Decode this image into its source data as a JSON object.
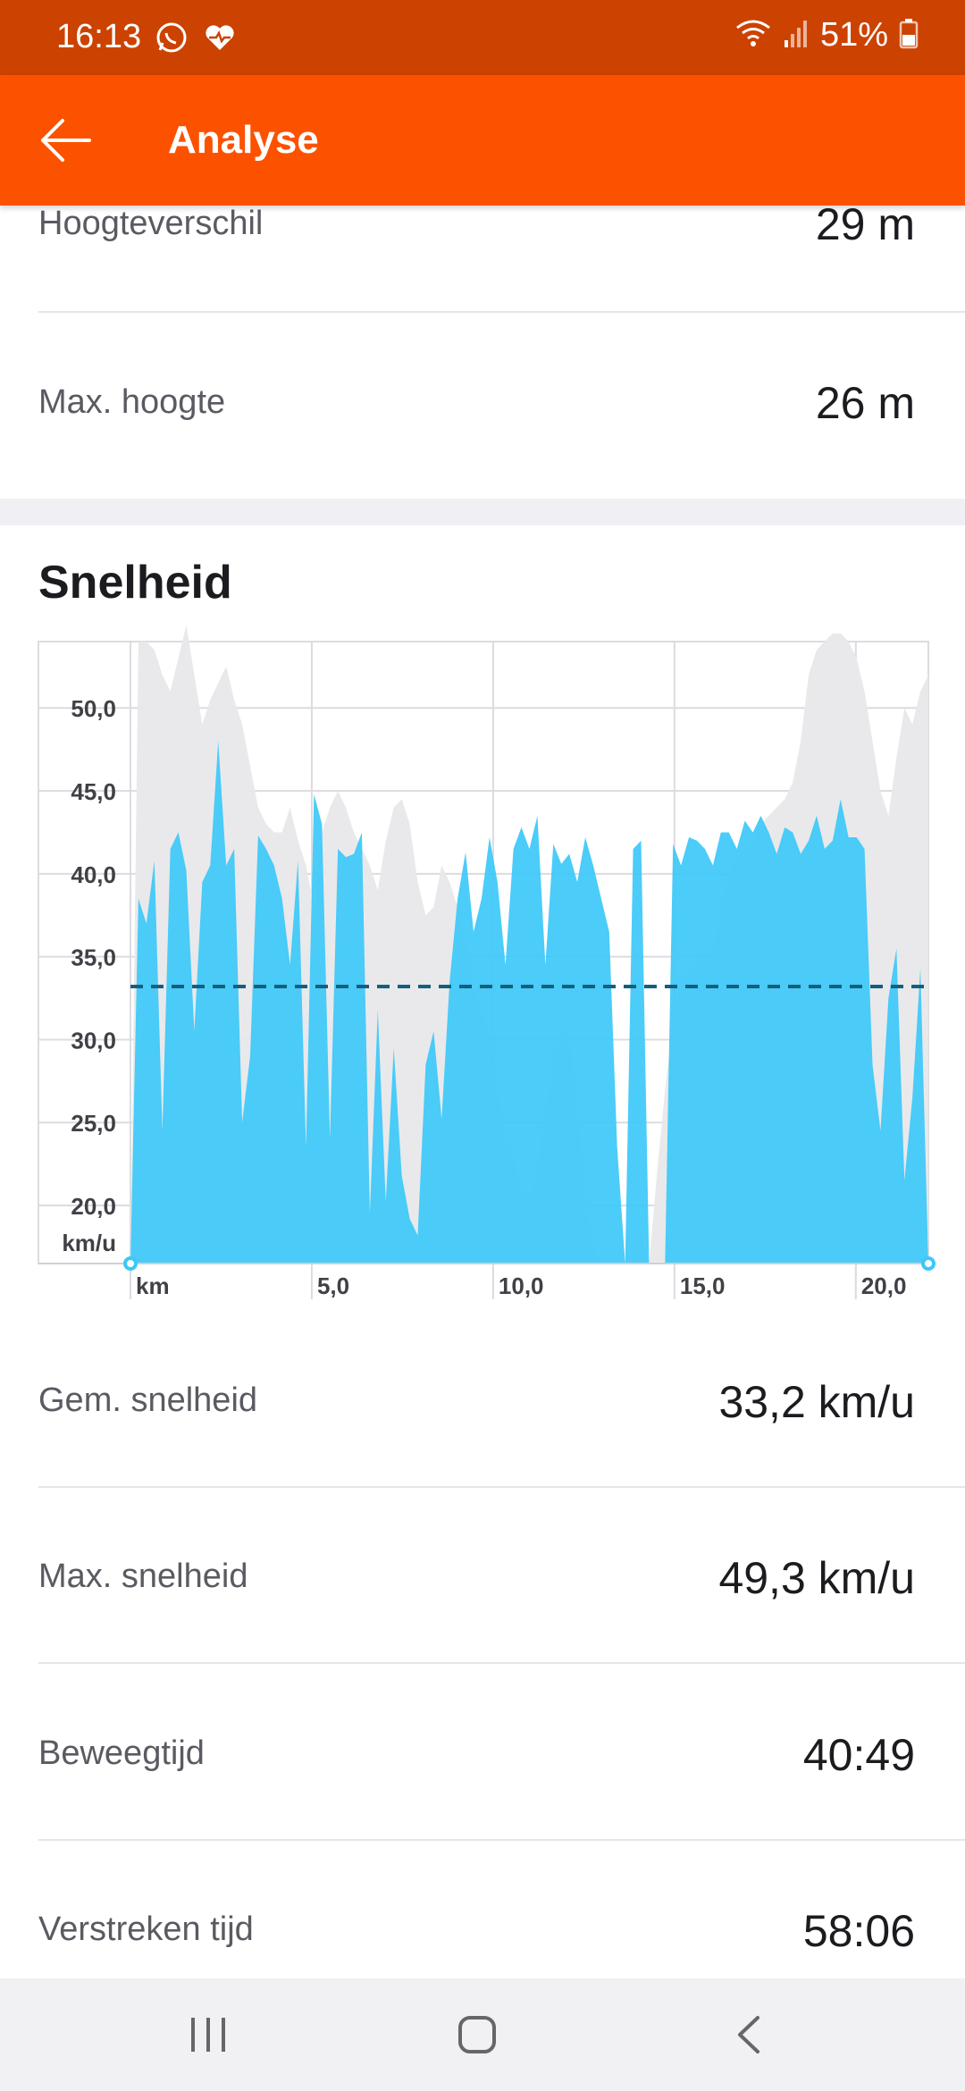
{
  "status_bar": {
    "time": "16:13",
    "battery": "51%",
    "icons": [
      "whatsapp-icon",
      "heart-monitor-icon",
      "wifi-icon",
      "signal-icon",
      "battery-icon"
    ]
  },
  "app_bar": {
    "title": "Analyse",
    "back_icon": "arrow-left-icon",
    "background": "#fc5200"
  },
  "elevation_stats": [
    {
      "label": "Hoogteverschil",
      "value": "29 m"
    },
    {
      "label": "Max. hoogte",
      "value": "26 m"
    }
  ],
  "speed_section": {
    "title": "Snelheid"
  },
  "chart_data": {
    "type": "area",
    "title": "Snelheid",
    "xlabel": "km",
    "ylabel": "km/u",
    "x_ticks": [
      "km",
      "5,0",
      "10,0",
      "15,0",
      "20,0"
    ],
    "y_ticks": [
      "50,0",
      "45,0",
      "40,0",
      "35,0",
      "30,0",
      "25,0",
      "20,0"
    ],
    "xlim": [
      0,
      22
    ],
    "ylim": [
      16.5,
      54
    ],
    "grid": true,
    "average_line": 33.2,
    "colors": {
      "speed": "#3cc8f8",
      "elevation": "#e8e8ea",
      "average": "#12607e"
    },
    "series": [
      {
        "id": "speed",
        "x": [
          0,
          0.22,
          0.44,
          0.66,
          0.88,
          1.1,
          1.32,
          1.54,
          1.76,
          1.98,
          2.2,
          2.42,
          2.64,
          2.86,
          3.08,
          3.3,
          3.52,
          3.74,
          3.96,
          4.18,
          4.4,
          4.62,
          4.84,
          5.06,
          5.28,
          5.5,
          5.72,
          5.94,
          6.16,
          6.38,
          6.6,
          6.82,
          7.04,
          7.26,
          7.48,
          7.7,
          7.92,
          8.14,
          8.36,
          8.58,
          8.8,
          9.02,
          9.24,
          9.46,
          9.68,
          9.9,
          10.12,
          10.34,
          10.56,
          10.78,
          11.0,
          11.22,
          11.44,
          11.66,
          11.88,
          12.1,
          12.32,
          12.54,
          12.76,
          12.98,
          13.2,
          13.42,
          13.64,
          13.86,
          14.08,
          14.3,
          14.52,
          14.74,
          14.96,
          15.18,
          15.4,
          15.62,
          15.84,
          16.06,
          16.28,
          16.5,
          16.72,
          16.94,
          17.16,
          17.38,
          17.6,
          17.82,
          18.04,
          18.26,
          18.48,
          18.7,
          18.92,
          19.14,
          19.36,
          19.58,
          19.8,
          20.02,
          20.24,
          20.46,
          20.68,
          20.9,
          21.12,
          21.34,
          21.56,
          21.78,
          22.0
        ],
        "values": [
          16.5,
          38.5,
          37,
          40.8,
          24.5,
          41.5,
          42.5,
          40.2,
          30.5,
          39.5,
          40.5,
          48,
          40.5,
          41.5,
          25,
          29,
          42.3,
          41.5,
          40.5,
          38.5,
          34.5,
          40.8,
          23.5,
          44.8,
          43,
          24,
          41.5,
          41,
          41.2,
          42.5,
          19.5,
          31.8,
          20.2,
          29.5,
          21.8,
          19.2,
          18.2,
          28.5,
          30.5,
          25.2,
          33.5,
          38.5,
          41.3,
          36.5,
          38.5,
          42.2,
          39.5,
          34.5,
          41.5,
          42.8,
          41.5,
          43.5,
          34.5,
          41.8,
          40.6,
          41.2,
          39.5,
          42.2,
          40.5,
          38.5,
          36.5,
          23.5,
          16.5,
          41.5,
          42,
          16.5,
          16.5,
          16.5,
          41.8,
          40.5,
          42.2,
          42,
          41.5,
          40.5,
          42.5,
          42.5,
          41.5,
          43.2,
          42.5,
          43.5,
          42.5,
          41.2,
          42.8,
          42.5,
          41.2,
          42,
          43.5,
          41.5,
          42,
          44.5,
          42.2,
          42.2,
          41.5,
          28.5,
          24.5,
          32.5,
          35.5,
          21.5,
          26.5,
          34.3,
          16.5
        ]
      },
      {
        "id": "elevation",
        "x": [
          0,
          0.22,
          0.44,
          0.66,
          0.88,
          1.1,
          1.32,
          1.54,
          1.76,
          1.98,
          2.2,
          2.42,
          2.64,
          2.86,
          3.08,
          3.3,
          3.52,
          3.74,
          3.96,
          4.18,
          4.4,
          4.62,
          4.84,
          5.06,
          5.28,
          5.5,
          5.72,
          5.94,
          6.16,
          6.38,
          6.6,
          6.82,
          7.04,
          7.26,
          7.48,
          7.7,
          7.92,
          8.14,
          8.36,
          8.58,
          8.8,
          9.02,
          9.24,
          9.46,
          9.68,
          9.9,
          10.12,
          10.34,
          10.56,
          10.78,
          11.0,
          11.22,
          11.44,
          11.66,
          11.88,
          12.1,
          12.32,
          12.54,
          12.76,
          12.98,
          13.2,
          13.42,
          13.64,
          13.86,
          14.08,
          14.3,
          14.52,
          14.74,
          14.96,
          15.18,
          15.4,
          15.62,
          15.84,
          16.06,
          16.28,
          16.5,
          16.72,
          16.94,
          17.16,
          17.38,
          17.6,
          17.82,
          18.04,
          18.26,
          18.48,
          18.7,
          18.92,
          19.14,
          19.36,
          19.58,
          19.8,
          20.02,
          20.24,
          20.46,
          20.68,
          20.9,
          21.12,
          21.34,
          21.56,
          21.78,
          22.0
        ],
        "values": [
          16.5,
          54,
          54,
          53.5,
          52,
          51,
          53,
          55,
          52,
          49,
          50.5,
          51.5,
          52.5,
          50.5,
          49,
          46.5,
          44,
          43,
          42.5,
          42.5,
          44,
          42,
          40.5,
          38,
          42.5,
          44,
          45,
          44,
          42.5,
          41.5,
          40.5,
          39,
          42,
          44,
          44.5,
          43,
          39.5,
          37.5,
          38,
          40.5,
          39.5,
          38,
          36,
          33,
          32,
          30,
          27,
          24,
          23,
          21,
          20.5,
          22,
          25.5,
          29,
          30.5,
          30,
          26,
          20,
          17.5,
          16.5,
          16.5,
          16.5,
          16.5,
          17.5,
          18.5,
          16.5,
          22,
          27,
          31,
          33.5,
          34,
          35,
          34.5,
          35,
          38,
          40,
          41,
          41.5,
          42,
          43,
          43.5,
          44,
          44.5,
          45.5,
          48,
          52,
          53.5,
          54,
          54.5,
          54.5,
          54,
          53,
          51,
          48,
          45,
          43.5,
          47,
          50,
          49,
          51,
          52
        ]
      }
    ]
  },
  "speed_stats": [
    {
      "label": "Gem. snelheid",
      "value": "33,2 km/u"
    },
    {
      "label": "Max. snelheid",
      "value": "49,3 km/u"
    },
    {
      "label": "Beweegtijd",
      "value": "40:49"
    },
    {
      "label": "Verstreken tijd",
      "value": "58:06"
    }
  ],
  "nav_bar": {
    "icons": [
      "recents-icon",
      "home-icon",
      "back-icon"
    ]
  }
}
